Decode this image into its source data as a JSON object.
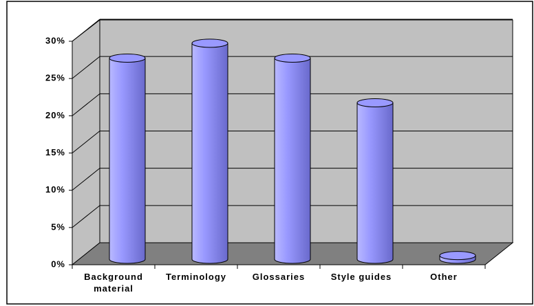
{
  "chart_data": {
    "type": "bar3d",
    "categories": [
      "Background material",
      "Terminology",
      "Glossaries",
      "Style guides",
      "Other"
    ],
    "values": [
      27,
      29,
      27,
      21,
      0.5
    ],
    "color": "#9999ff",
    "ylim": [
      0,
      30
    ],
    "yticks": [
      {
        "value": 0,
        "label": "0%"
      },
      {
        "value": 5,
        "label": "5%"
      },
      {
        "value": 10,
        "label": "10%"
      },
      {
        "value": 15,
        "label": "15%"
      },
      {
        "value": 20,
        "label": "20%"
      },
      {
        "value": 25,
        "label": "25%"
      },
      {
        "value": 30,
        "label": "30%"
      }
    ],
    "grid": true
  }
}
